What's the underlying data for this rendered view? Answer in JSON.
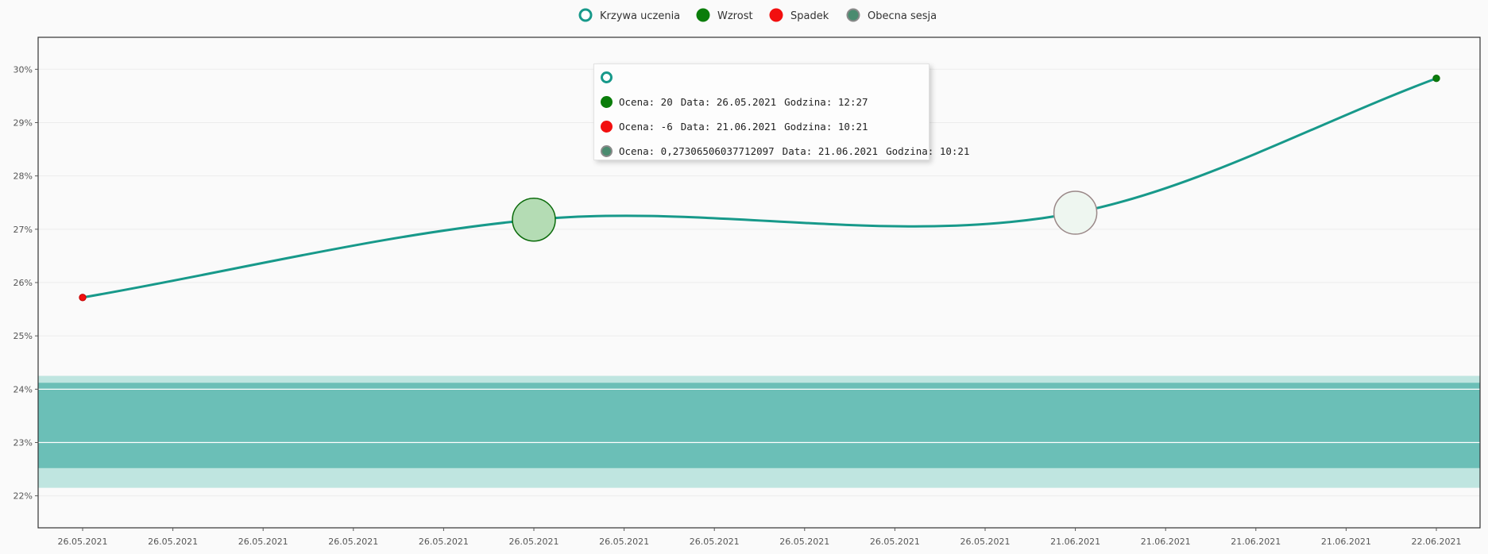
{
  "colors": {
    "learning_curve": "#17998a",
    "increase": "#0a7d0a",
    "decrease": "#f20f0f",
    "current_fill": "#4a8b6f",
    "current_border": "#8a8a8a",
    "band_outer": "#bfe5e0",
    "band_inner": "#6bbfb7"
  },
  "legend": [
    {
      "label": "Krzywa uczenia",
      "icon": "ring-icon"
    },
    {
      "label": "Wzrost",
      "icon": "green-dot-icon"
    },
    {
      "label": "Spadek",
      "icon": "red-dot-icon"
    },
    {
      "label": "Obecna sesja",
      "icon": "gray-dot-icon"
    }
  ],
  "chart_data": {
    "type": "line",
    "title": "",
    "xlabel": "",
    "ylabel": "",
    "ylim": [
      21.4,
      30.6
    ],
    "y_ticks": [
      "22%",
      "23%",
      "24%",
      "25%",
      "26%",
      "27%",
      "28%",
      "29%",
      "30%"
    ],
    "y_tick_values": [
      22,
      23,
      24,
      25,
      26,
      27,
      28,
      29,
      30
    ],
    "categories": [
      "26.05.2021",
      "26.05.2021",
      "26.05.2021",
      "26.05.2021",
      "26.05.2021",
      "26.05.2021",
      "26.05.2021",
      "26.05.2021",
      "26.05.2021",
      "26.05.2021",
      "26.05.2021",
      "21.06.2021",
      "21.06.2021",
      "21.06.2021",
      "21.06.2021",
      "22.06.2021"
    ],
    "series": [
      {
        "name": "Krzywa uczenia",
        "x": [
          0,
          5,
          11,
          15
        ],
        "values": [
          25.72,
          27.18,
          27.31,
          29.83
        ]
      }
    ],
    "markers": [
      {
        "name": "Spadek",
        "x": 0,
        "value": 25.72,
        "size": "small"
      },
      {
        "name": "Wzrost",
        "x": 5,
        "value": 27.18,
        "size": "large"
      },
      {
        "name": "Obecna sesja",
        "x": 11,
        "value": 27.31,
        "size": "large"
      },
      {
        "name": "Wzrost",
        "x": 15,
        "value": 29.83,
        "size": "small"
      }
    ],
    "bands": [
      {
        "from": 22.15,
        "to": 24.25,
        "color": "band_outer"
      },
      {
        "from": 22.52,
        "to": 24.12,
        "color": "band_inner"
      }
    ],
    "grid": true,
    "legend_position": "top-center"
  },
  "tooltip": {
    "rows": [
      {
        "icon": "ring-icon",
        "ocena": "",
        "data": "",
        "godzina": ""
      },
      {
        "icon": "green-dot-icon",
        "ocena": "Ocena: 20",
        "data": "Data: 26.05.2021",
        "godzina": "Godzina: 12:27"
      },
      {
        "icon": "red-dot-icon",
        "ocena": "Ocena: -6",
        "data": "Data: 21.06.2021",
        "godzina": "Godzina: 10:21"
      },
      {
        "icon": "gray-dot-icon",
        "ocena": "Ocena: 0,27306506037712097",
        "data": "Data: 21.06.2021",
        "godzina": "Godzina: 10:21"
      }
    ]
  }
}
